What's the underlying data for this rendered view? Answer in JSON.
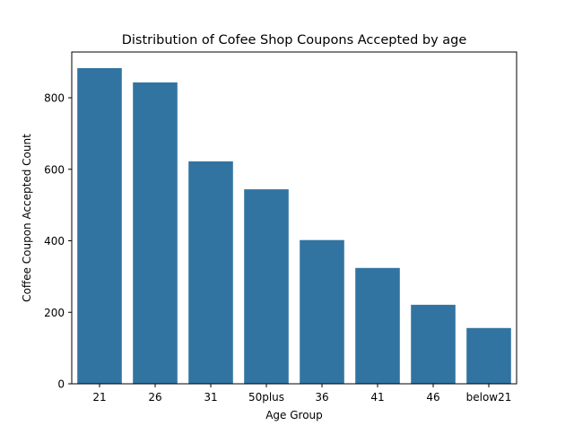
{
  "chart_data": {
    "type": "bar",
    "title": "Distribution of Cofee Shop Coupons Accepted by age",
    "xlabel": "Age Group",
    "ylabel": "Coffee Coupon Accepted Count",
    "categories": [
      "21",
      "26",
      "31",
      "50plus",
      "36",
      "41",
      "46",
      "below21"
    ],
    "values": [
      883,
      843,
      622,
      544,
      402,
      324,
      221,
      156
    ],
    "ylim": [
      0,
      928
    ],
    "yticks": [
      0,
      200,
      400,
      600,
      800
    ],
    "grid": false,
    "legend": "none",
    "bar_color": "#3274a1"
  }
}
